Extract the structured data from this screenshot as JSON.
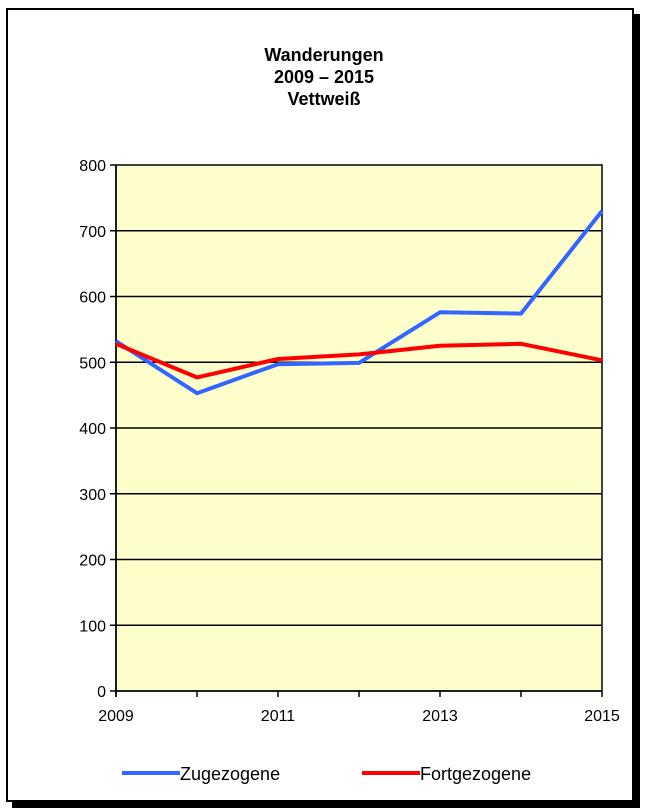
{
  "chart_data": {
    "type": "line",
    "title_lines": [
      "Wanderungen",
      "2009 – 2015",
      "Vettweiß"
    ],
    "xlabel": "",
    "ylabel": "",
    "x": [
      2009,
      2010,
      2011,
      2012,
      2013,
      2014,
      2015
    ],
    "x_tick_labels": [
      "2009",
      "2011",
      "2013",
      "2015"
    ],
    "y_ticks": [
      0,
      100,
      200,
      300,
      400,
      500,
      600,
      700,
      800
    ],
    "ylim": [
      0,
      800
    ],
    "grid": "horizontal",
    "legend_position": "bottom",
    "plot_background": "#FFFFCC",
    "series": [
      {
        "name": "Zugezogene",
        "color": "#3366FF",
        "values": [
          532,
          453,
          497,
          499,
          576,
          574,
          730
        ]
      },
      {
        "name": "Fortgezogene",
        "color": "#FF0000",
        "values": [
          528,
          477,
          505,
          512,
          525,
          528,
          503
        ]
      }
    ]
  }
}
